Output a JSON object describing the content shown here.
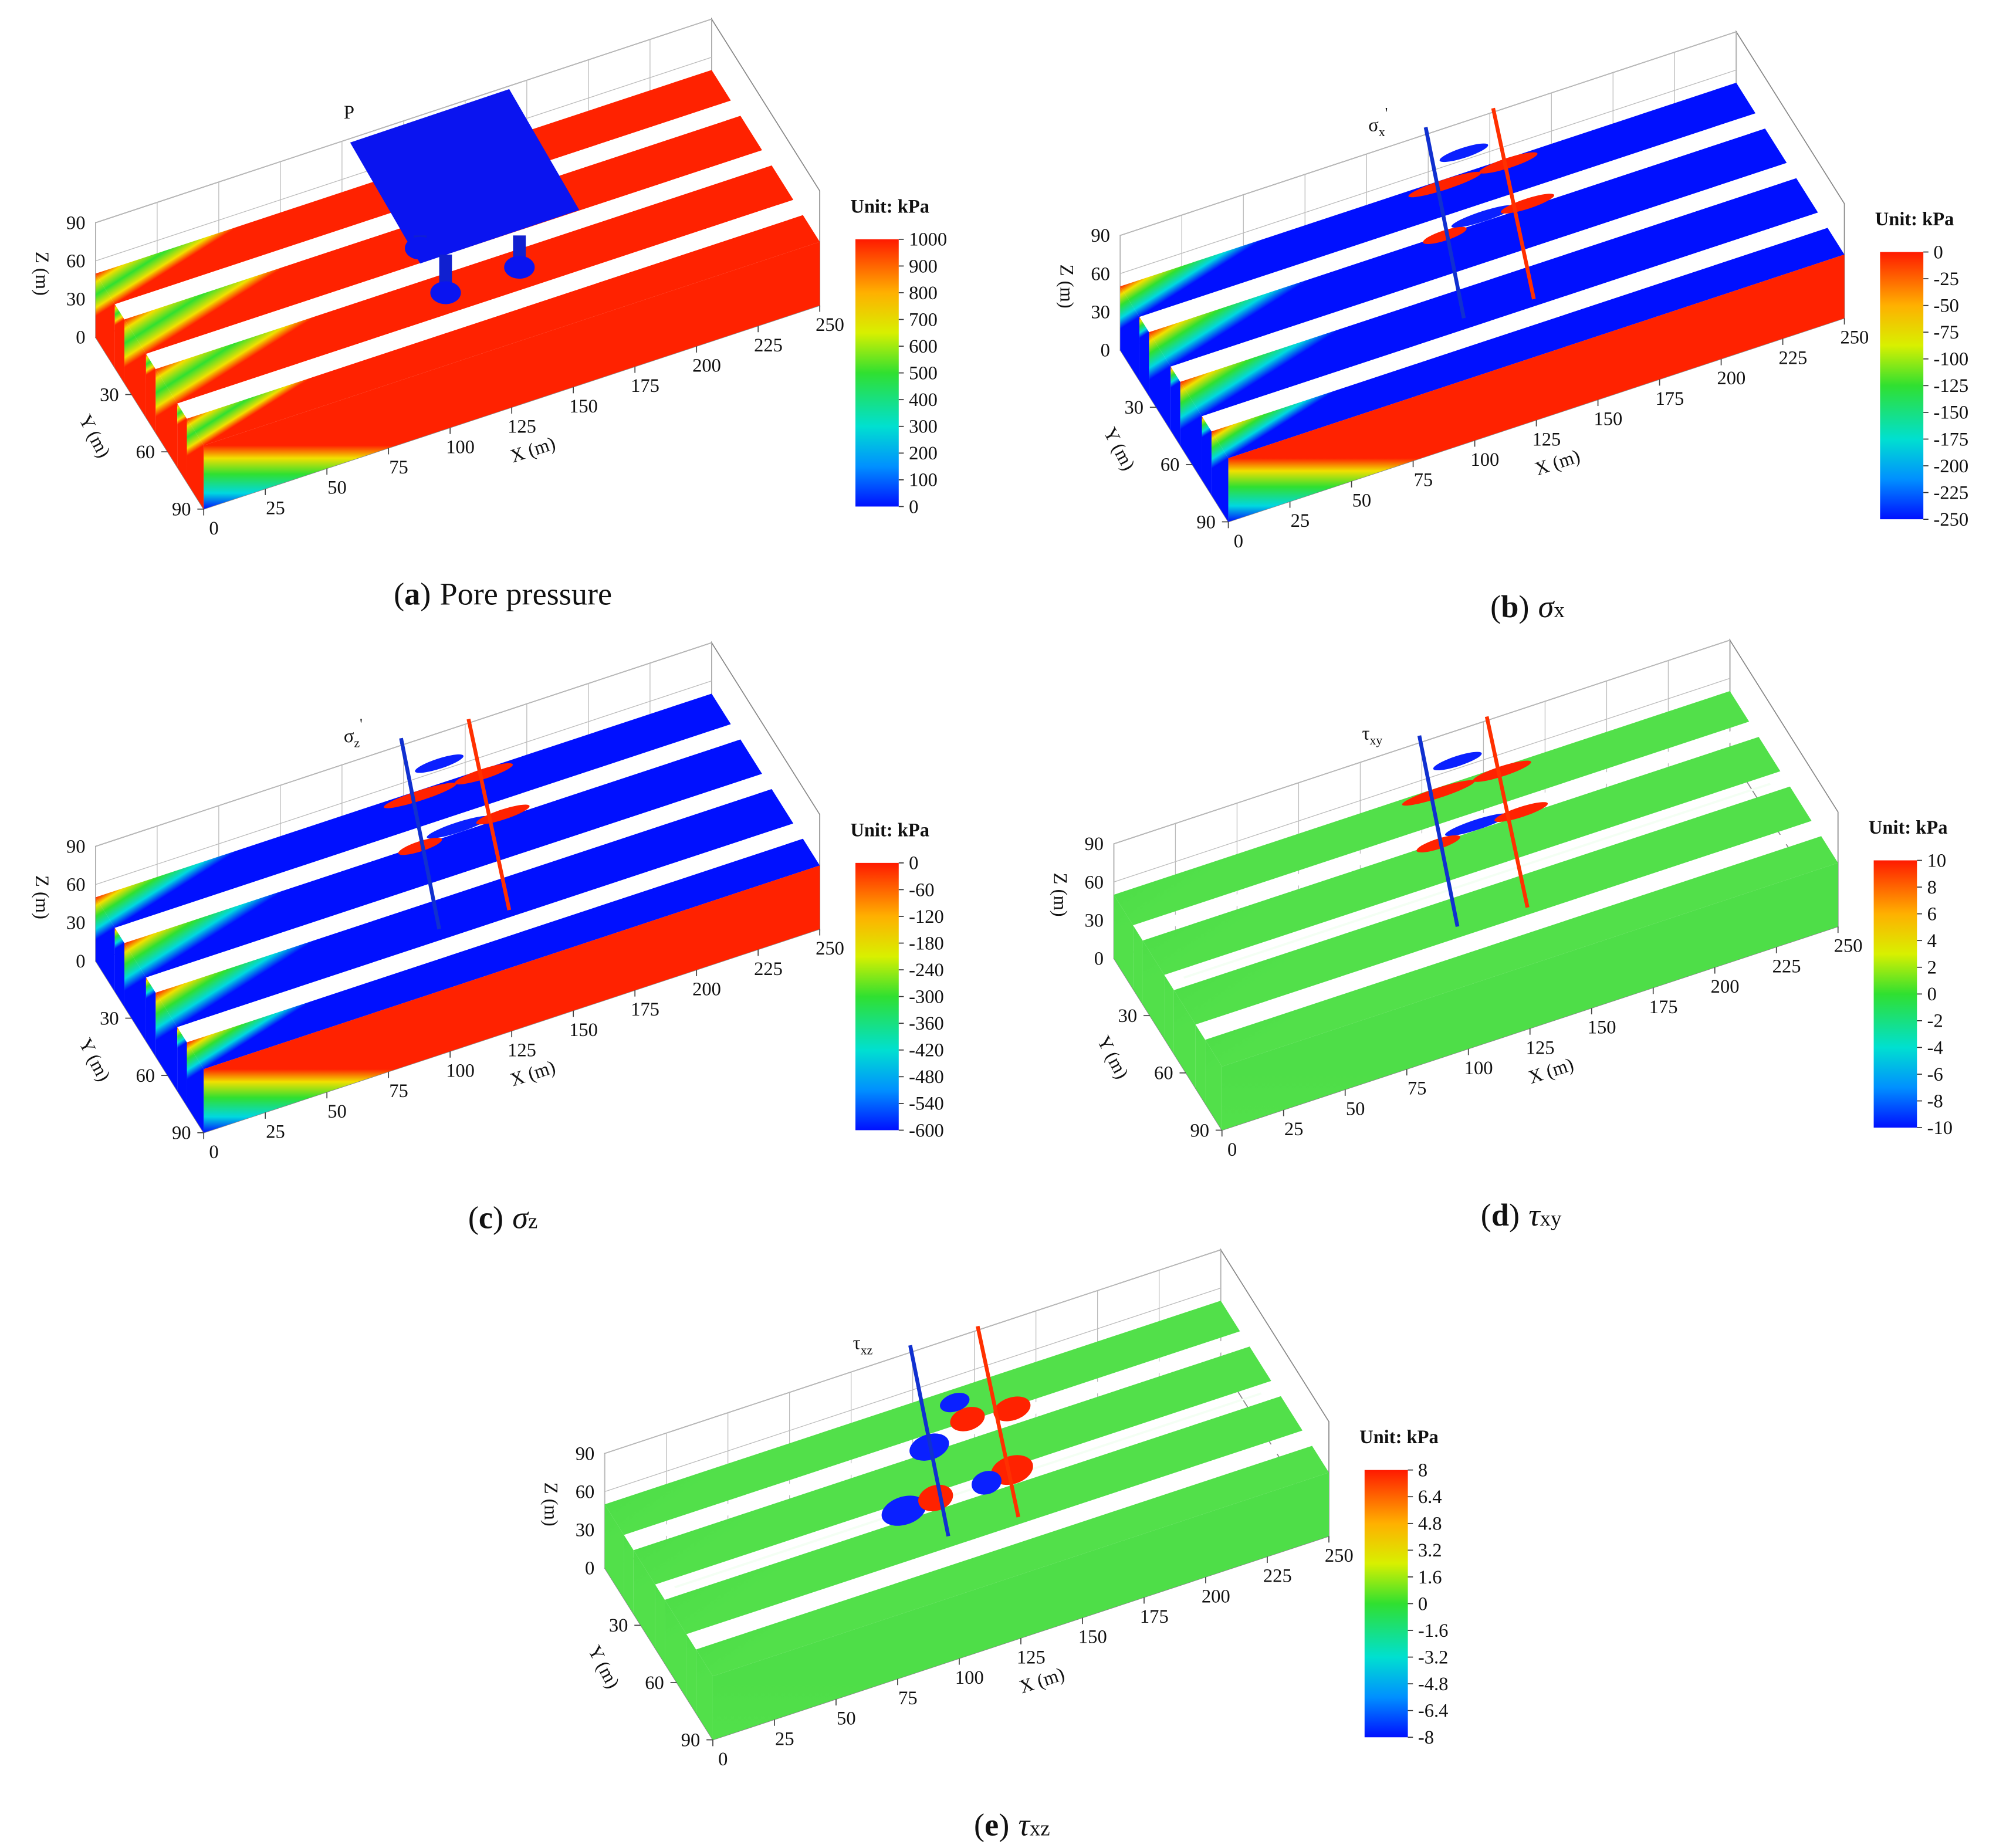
{
  "panels": [
    {
      "caption": {
        "prefix": "(",
        "letter": "a",
        "suffix": ")",
        "text": "Pore pressure"
      },
      "plot_label": {
        "symbol": "P"
      },
      "unit": "Unit: kPa",
      "colorbar_ticks": [
        1000,
        900,
        800,
        700,
        600,
        500,
        400,
        300,
        200,
        100,
        0
      ],
      "x_label": "X (m)",
      "x_ticks": [
        0,
        25,
        50,
        75,
        100,
        125,
        150,
        175,
        200,
        225,
        250
      ],
      "y_label": "Y (m)",
      "y_ticks": [
        30,
        60,
        90
      ],
      "z_label": "Z (m)",
      "z_ticks": [
        0,
        30,
        60,
        90
      ]
    },
    {
      "caption": {
        "prefix": "(",
        "letter": "b",
        "suffix": ")",
        "text": "σ",
        "subscript": "x"
      },
      "plot_label": {
        "symbol": "σ",
        "sub": "x",
        "sup": "'"
      },
      "unit": "Unit: kPa",
      "colorbar_ticks": [
        0,
        -25,
        -50,
        -75,
        -100,
        -125,
        -150,
        -175,
        -200,
        -225,
        -250
      ],
      "x_label": "X (m)",
      "x_ticks": [
        0,
        25,
        50,
        75,
        100,
        125,
        150,
        175,
        200,
        225,
        250
      ],
      "y_label": "Y (m)",
      "y_ticks": [
        30,
        60,
        90
      ],
      "z_label": "Z (m)",
      "z_ticks": [
        0,
        30,
        60,
        90
      ]
    },
    {
      "caption": {
        "prefix": "(",
        "letter": "c",
        "suffix": ")",
        "text": "σ",
        "subscript": "z"
      },
      "plot_label": {
        "symbol": "σ",
        "sub": "z",
        "sup": "'"
      },
      "unit": "Unit: kPa",
      "colorbar_ticks": [
        0,
        -60,
        -120,
        -180,
        -240,
        -300,
        -360,
        -420,
        -480,
        -540,
        -600
      ],
      "x_label": "X (m)",
      "x_ticks": [
        0,
        25,
        50,
        75,
        100,
        125,
        150,
        175,
        200,
        225,
        250
      ],
      "y_label": "Y (m)",
      "y_ticks": [
        30,
        60,
        90
      ],
      "z_label": "Z (m)",
      "z_ticks": [
        0,
        30,
        60,
        90
      ]
    },
    {
      "caption": {
        "prefix": "(",
        "letter": "d",
        "suffix": ")",
        "text": "τ",
        "subscript": "xy"
      },
      "plot_label": {
        "symbol": "τ",
        "sub": "xy"
      },
      "unit": "Unit: kPa",
      "colorbar_ticks": [
        10,
        8,
        6,
        4,
        2,
        0,
        -2,
        -4,
        -6,
        -8,
        -10
      ],
      "x_label": "X (m)",
      "x_ticks": [
        0,
        25,
        50,
        75,
        100,
        125,
        150,
        175,
        200,
        225,
        250
      ],
      "y_label": "Y (m)",
      "y_ticks": [
        30,
        60,
        90
      ],
      "z_label": "Z (m)",
      "z_ticks": [
        0,
        30,
        60,
        90
      ]
    },
    {
      "caption": {
        "prefix": "(",
        "letter": "e",
        "suffix": ")",
        "text": "τ",
        "subscript": "xz"
      },
      "plot_label": {
        "symbol": "τ",
        "sub": "xz"
      },
      "unit": "Unit: kPa",
      "colorbar_ticks": [
        8,
        6.4,
        4.8,
        3.2,
        1.6,
        0,
        -1.6,
        -3.2,
        -4.8,
        -6.4,
        -8
      ],
      "x_label": "X (m)",
      "x_ticks": [
        0,
        25,
        50,
        75,
        100,
        125,
        150,
        175,
        200,
        225,
        250
      ],
      "y_label": "Y (m)",
      "y_ticks": [
        30,
        60,
        90
      ],
      "z_label": "Z (m)",
      "z_ticks": [
        0,
        30,
        60,
        90
      ]
    }
  ]
}
